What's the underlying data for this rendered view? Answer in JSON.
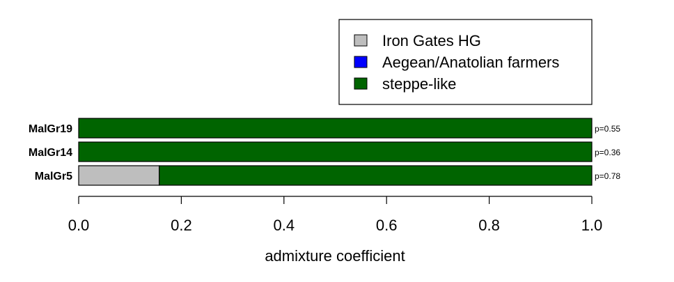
{
  "chart_data": {
    "type": "bar",
    "orientation": "horizontal",
    "stacked": true,
    "categories": [
      "MalGr19",
      "MalGr14",
      "MalGr5"
    ],
    "series": [
      {
        "name": "Iron Gates HG",
        "color": "#bebebe",
        "values": [
          0.0,
          0.0,
          0.157
        ]
      },
      {
        "name": "Aegean/Anatolian farmers",
        "color": "#0000ff",
        "values": [
          0.0,
          0.0,
          0.0
        ]
      },
      {
        "name": "steppe-like",
        "color": "#006400",
        "values": [
          1.0,
          1.0,
          0.843
        ]
      }
    ],
    "annotations": [
      "p=0.55",
      "p=0.36",
      "p=0.78"
    ],
    "xlabel": "admixture coefficient",
    "xlim": [
      0,
      1
    ],
    "xticks": [
      "0.0",
      "0.2",
      "0.4",
      "0.6",
      "0.8",
      "1.0"
    ],
    "grid": false,
    "legend_position": "top-right"
  }
}
